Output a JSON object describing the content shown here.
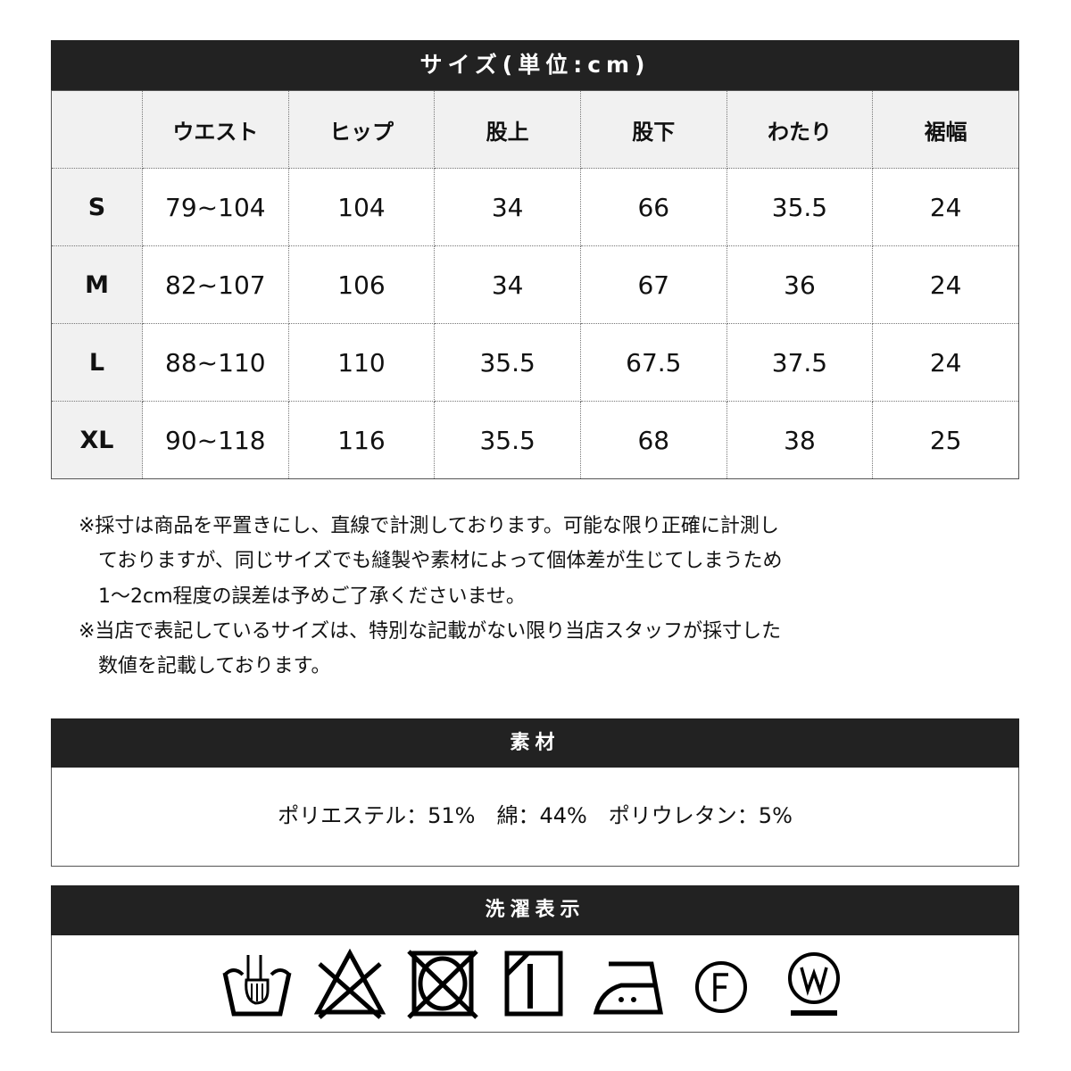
{
  "size": {
    "title": "サイズ(単位:cm)",
    "headers": [
      "",
      "ウエスト",
      "ヒップ",
      "股上",
      "股下",
      "わたり",
      "裾幅"
    ],
    "rows": [
      [
        "S",
        "79~104",
        "104",
        "34",
        "66",
        "35.5",
        "24"
      ],
      [
        "M",
        "82~107",
        "106",
        "34",
        "67",
        "36",
        "24"
      ],
      [
        "L",
        "88~110",
        "110",
        "35.5",
        "67.5",
        "37.5",
        "24"
      ],
      [
        "XL",
        "90~118",
        "116",
        "35.5",
        "68",
        "38",
        "25"
      ]
    ]
  },
  "notes": [
    "※採寸は商品を平置きにし、直線で計測しております。可能な限り正確に計測し",
    "ておりますが、同じサイズでも縫製や素材によって個体差が生じてしまうため",
    "1～2cm程度の誤差は予めご了承くださいませ。",
    "※当店で表記しているサイズは、特別な記載がない限り当店スタッフが採寸した",
    "数値を記載しております。"
  ],
  "material": {
    "title": "素材",
    "text": "ポリエステル：51%　綿：44%　ポリウレタン：5%"
  },
  "care": {
    "title": "洗濯表示",
    "icons": [
      "hand-wash-icon",
      "no-bleach-icon",
      "no-tumble-dry-icon",
      "drip-dry-shade-icon",
      "iron-medium-icon",
      "dry-clean-f-icon",
      "wet-clean-gentle-icon"
    ]
  }
}
